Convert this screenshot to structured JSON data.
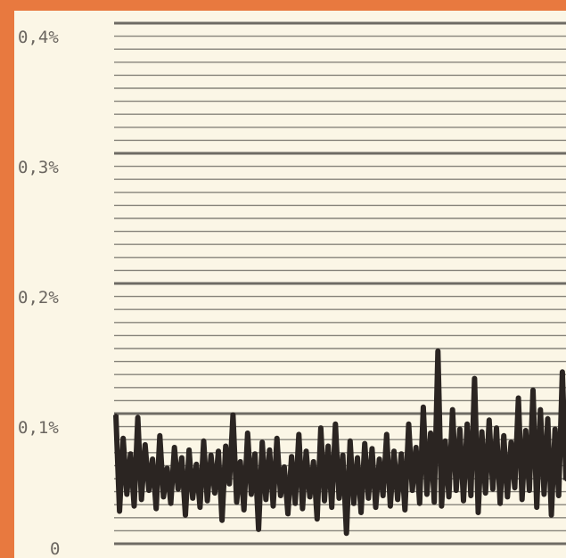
{
  "chart_data": {
    "type": "line",
    "title": "",
    "xlabel": "",
    "ylabel": "",
    "ylim": [
      0,
      0.004
    ],
    "y_ticks": [
      {
        "value": 0.004,
        "label": "0,4%"
      },
      {
        "value": 0.003,
        "label": "0,3%"
      },
      {
        "value": 0.002,
        "label": "0,2%"
      },
      {
        "value": 0.001,
        "label": "0,1%"
      },
      {
        "value": 0,
        "label": "0"
      }
    ],
    "grid": true,
    "grid_minor_per_major": 10,
    "colors": {
      "frame": "#e8793f",
      "panel": "#fbf6e6",
      "grid": "#5f5d57",
      "series": "#2b2522",
      "labels": "#6b6660"
    },
    "series": [
      {
        "values": [
          0.00099,
          0.00025,
          0.00081,
          0.00038,
          0.00069,
          0.00029,
          0.00097,
          0.00034,
          0.00076,
          0.00041,
          0.00065,
          0.00027,
          0.00083,
          0.00036,
          0.00058,
          0.00031,
          0.00074,
          0.00042,
          0.00066,
          0.00022,
          0.00072,
          0.00035,
          0.00061,
          0.00028,
          0.00079,
          0.00033,
          0.00068,
          0.00039,
          0.00071,
          0.00018,
          0.00075,
          0.00046,
          0.00099,
          0.00032,
          0.00063,
          0.00026,
          0.00085,
          0.00038,
          0.00069,
          0.00011,
          0.00078,
          0.00034,
          0.00072,
          0.00029,
          0.00081,
          0.00037,
          0.00059,
          0.00023,
          0.00067,
          0.00031,
          0.00084,
          0.00027,
          0.00071,
          0.00036,
          0.00063,
          0.00019,
          0.00089,
          0.00033,
          0.00075,
          0.00028,
          0.00092,
          0.00035,
          0.00068,
          8e-05,
          0.00079,
          0.00031,
          0.00066,
          0.00024,
          0.00077,
          0.00035,
          0.00073,
          0.00028,
          0.00065,
          0.00037,
          0.00084,
          0.00029,
          0.00071,
          0.00034,
          0.00069,
          0.00026,
          0.00092,
          0.00041,
          0.00074,
          0.00031,
          0.00105,
          0.00038,
          0.00085,
          0.00032,
          0.00148,
          0.00029,
          0.00079,
          0.00036,
          0.00103,
          0.00041,
          0.00088,
          0.00033,
          0.00092,
          0.00037,
          0.00127,
          0.00024,
          0.00086,
          0.00039,
          0.00095,
          0.00042,
          0.00089,
          0.00031,
          0.00083,
          0.00036,
          0.00078,
          0.00043,
          0.00112,
          0.00034,
          0.00087,
          0.00041,
          0.00118,
          0.00028,
          0.00103,
          0.00038,
          0.00096,
          0.00022,
          0.00088,
          0.00037,
          0.00132,
          0.00049
        ]
      }
    ]
  }
}
